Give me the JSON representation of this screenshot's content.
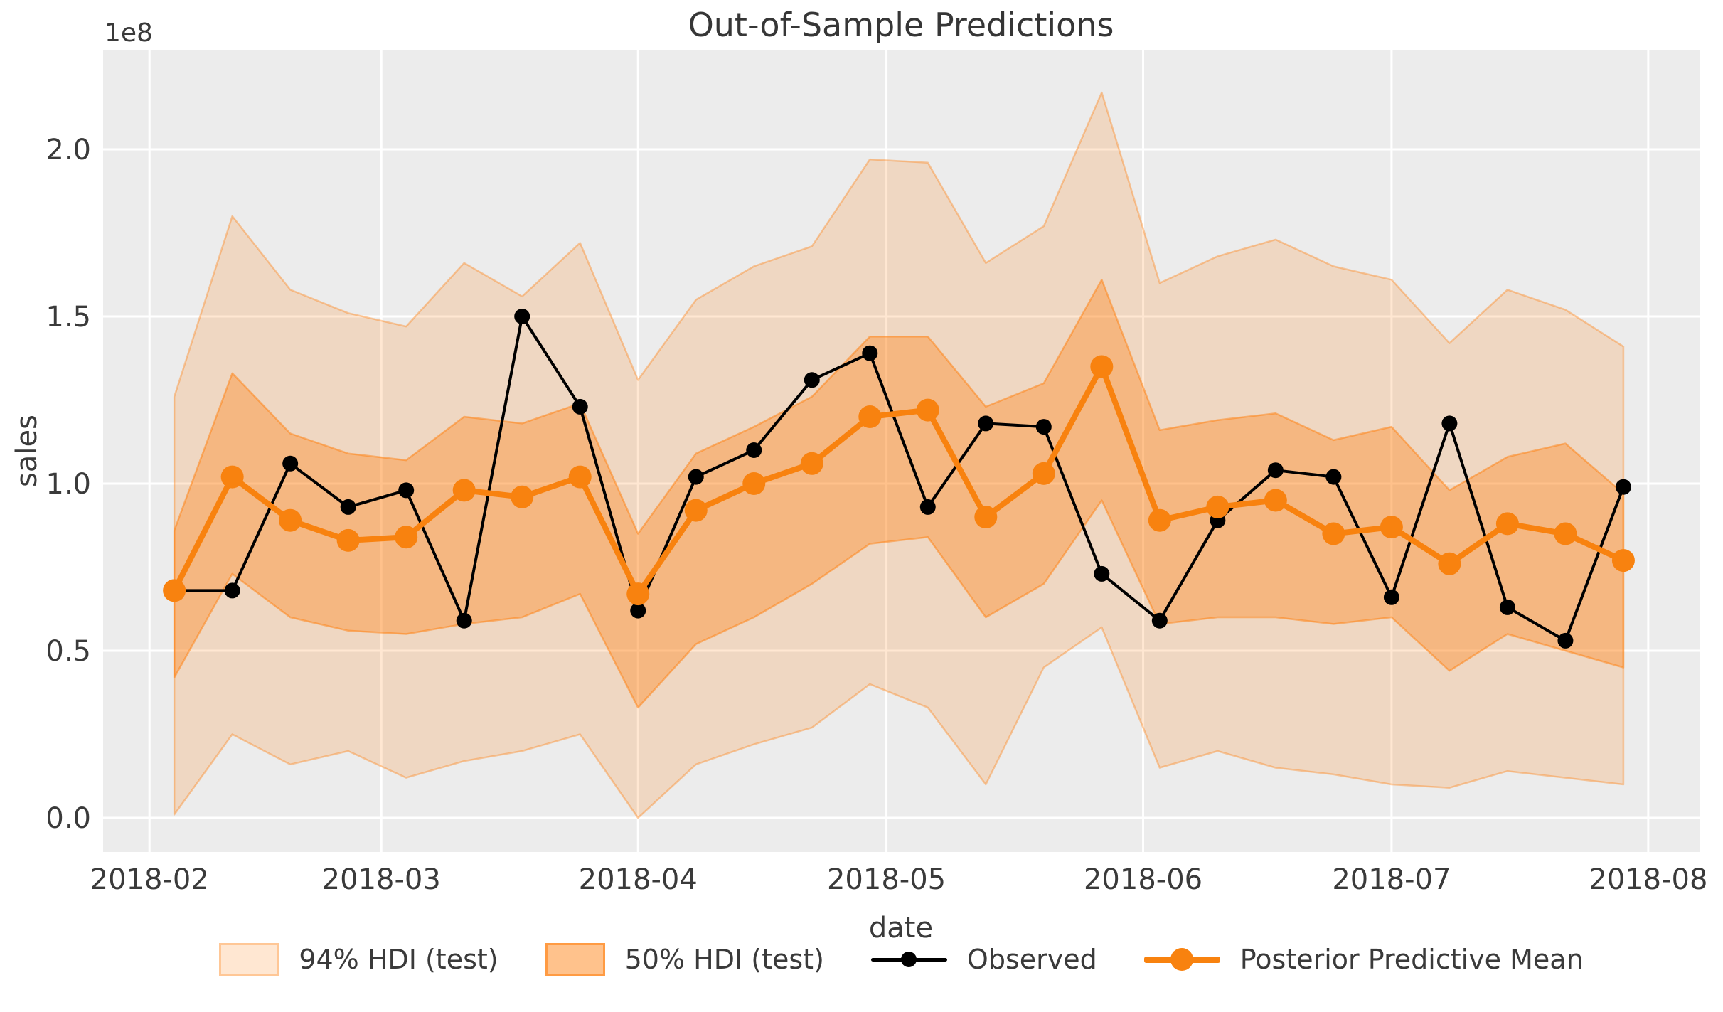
{
  "title": "Out-of-Sample Predictions",
  "axes": {
    "xlabel": "date",
    "ylabel": "sales",
    "offset_text": "1e8",
    "x_ticks": [
      {
        "date": "2018-02-01",
        "label": "2018-02"
      },
      {
        "date": "2018-03-01",
        "label": "2018-03"
      },
      {
        "date": "2018-04-01",
        "label": "2018-04"
      },
      {
        "date": "2018-05-01",
        "label": "2018-05"
      },
      {
        "date": "2018-06-01",
        "label": "2018-06"
      },
      {
        "date": "2018-07-01",
        "label": "2018-07"
      },
      {
        "date": "2018-08-01",
        "label": "2018-08"
      }
    ],
    "y_ticks": [
      {
        "value": 0.0,
        "label": "0.0"
      },
      {
        "value": 0.5,
        "label": "0.5"
      },
      {
        "value": 1.0,
        "label": "1.0"
      },
      {
        "value": 1.5,
        "label": "1.5"
      },
      {
        "value": 2.0,
        "label": "2.0"
      }
    ]
  },
  "legend": {
    "items": [
      {
        "label": "94% HDI (test)",
        "swatch": "patch-light"
      },
      {
        "label": "50% HDI (test)",
        "swatch": "patch-medium"
      },
      {
        "label": "Observed",
        "swatch": "line-dot-black"
      },
      {
        "label": "Posterior Predictive Mean",
        "swatch": "line-dot-orange"
      }
    ]
  },
  "colors": {
    "accent_orange": "#ff7f0e",
    "observed_black": "#000000",
    "axes_background": "#ececec",
    "gridline": "#ffffff",
    "text": "#3a3a3a"
  },
  "chart_data": {
    "type": "line",
    "title": "Out-of-Sample Predictions",
    "xlabel": "date",
    "ylabel": "sales",
    "y_units": "1e8",
    "grid": true,
    "legend_position": "bottom-center",
    "ylim": [
      -0.1,
      2.3
    ],
    "xlim": [
      "2018-01-26",
      "2018-08-07"
    ],
    "x": [
      "2018-02-04",
      "2018-02-11",
      "2018-02-18",
      "2018-02-25",
      "2018-03-04",
      "2018-03-11",
      "2018-03-18",
      "2018-03-25",
      "2018-04-01",
      "2018-04-08",
      "2018-04-15",
      "2018-04-22",
      "2018-04-29",
      "2018-05-06",
      "2018-05-13",
      "2018-05-20",
      "2018-05-27",
      "2018-06-03",
      "2018-06-10",
      "2018-06-17",
      "2018-06-24",
      "2018-07-01",
      "2018-07-08",
      "2018-07-15",
      "2018-07-22",
      "2018-07-29"
    ],
    "series": [
      {
        "name": "Observed",
        "color": "#000000",
        "values": [
          0.68,
          0.68,
          1.06,
          0.93,
          0.98,
          0.59,
          1.5,
          1.23,
          0.62,
          1.02,
          1.1,
          1.31,
          1.39,
          0.93,
          1.18,
          1.17,
          0.73,
          0.59,
          0.89,
          1.04,
          1.02,
          0.66,
          1.18,
          0.63,
          0.53,
          0.99
        ]
      },
      {
        "name": "Posterior Predictive Mean",
        "color": "#f8820f",
        "values": [
          0.68,
          1.02,
          0.89,
          0.83,
          0.84,
          0.98,
          0.96,
          1.02,
          0.67,
          0.92,
          1.0,
          1.06,
          1.2,
          1.22,
          0.9,
          1.03,
          1.35,
          0.89,
          0.93,
          0.95,
          0.85,
          0.87,
          0.76,
          0.88,
          0.85,
          0.77
        ]
      }
    ],
    "bands": [
      {
        "name": "94% HDI (test)",
        "lower": [
          0.01,
          0.25,
          0.16,
          0.2,
          0.12,
          0.17,
          0.2,
          0.25,
          0.0,
          0.16,
          0.22,
          0.27,
          0.4,
          0.33,
          0.1,
          0.45,
          0.57,
          0.15,
          0.2,
          0.15,
          0.13,
          0.1,
          0.09,
          0.14,
          0.12,
          0.1
        ],
        "upper": [
          1.26,
          1.8,
          1.58,
          1.51,
          1.47,
          1.66,
          1.56,
          1.72,
          1.31,
          1.55,
          1.65,
          1.71,
          1.97,
          1.96,
          1.66,
          1.77,
          2.17,
          1.6,
          1.68,
          1.73,
          1.65,
          1.61,
          1.42,
          1.58,
          1.52,
          1.41
        ]
      },
      {
        "name": "50% HDI (test)",
        "lower": [
          0.42,
          0.73,
          0.6,
          0.56,
          0.55,
          0.58,
          0.6,
          0.67,
          0.33,
          0.52,
          0.6,
          0.7,
          0.82,
          0.84,
          0.6,
          0.7,
          0.95,
          0.58,
          0.6,
          0.6,
          0.58,
          0.6,
          0.44,
          0.55,
          0.5,
          0.45
        ],
        "upper": [
          0.86,
          1.33,
          1.15,
          1.09,
          1.07,
          1.2,
          1.18,
          1.24,
          0.85,
          1.09,
          1.17,
          1.26,
          1.44,
          1.44,
          1.23,
          1.3,
          1.61,
          1.16,
          1.19,
          1.21,
          1.13,
          1.17,
          0.98,
          1.08,
          1.12,
          0.97
        ]
      }
    ]
  }
}
